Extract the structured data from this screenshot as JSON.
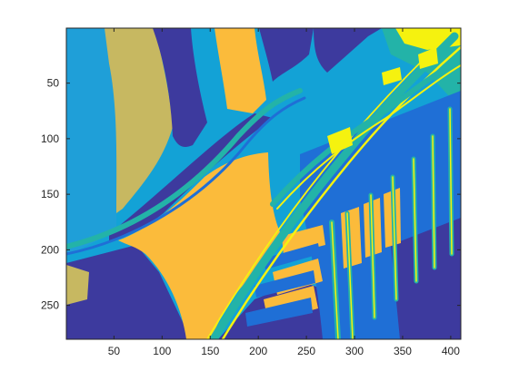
{
  "chart_data": {
    "type": "heatmap",
    "description_of_content": "",
    "xlim": [
      0.5,
      410.5
    ],
    "ylim": [
      0.5,
      280.5
    ],
    "y_direction": "reverse",
    "xticks": [
      50,
      100,
      150,
      200,
      250,
      300,
      350,
      400
    ],
    "yticks": [
      50,
      100,
      150,
      200,
      250
    ],
    "xtick_labels": [
      "50",
      "100",
      "150",
      "200",
      "250",
      "300",
      "350",
      "400"
    ],
    "ytick_labels": [
      "50",
      "100",
      "150",
      "200",
      "250"
    ],
    "colormap": [
      "#3d3a9e",
      "#1f6fd6",
      "#13a2d6",
      "#23b3a8",
      "#fbbb3b",
      "#c7b861",
      "#f5f20f"
    ],
    "grid": false,
    "title": "",
    "xlabel": "",
    "ylabel": ""
  }
}
